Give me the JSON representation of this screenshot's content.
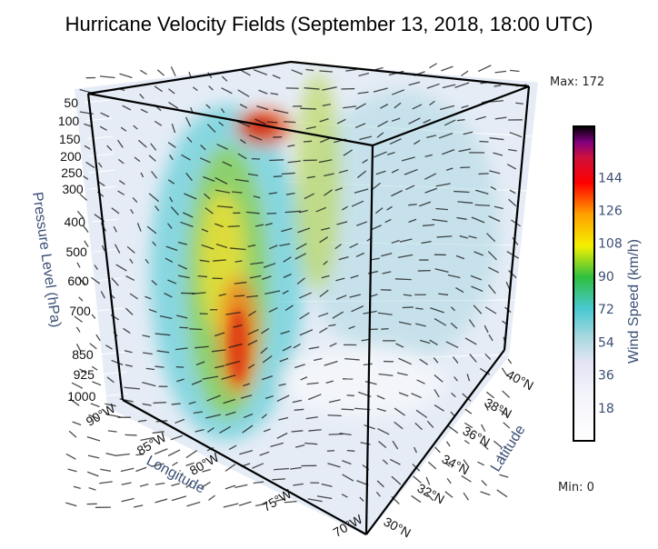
{
  "chart_data": {
    "type": "3d-cone",
    "title": "Hurricane Velocity Fields (September 13, 2018, 18:00 UTC)",
    "axes": {
      "x": {
        "title": "Longitude",
        "ticks": [
          "90°W",
          "85°W",
          "80°W",
          "75°W",
          "70°W"
        ],
        "range": [
          -90,
          -70
        ]
      },
      "y": {
        "title": "Latitude",
        "ticks": [
          "30°N",
          "32°N",
          "34°N",
          "36°N",
          "38°N",
          "40°N"
        ],
        "range": [
          30,
          40
        ]
      },
      "z": {
        "title": "Pressure Level (hPa)",
        "ticks": [
          "50",
          "100",
          "150",
          "200",
          "250",
          "300",
          "400",
          "500",
          "600",
          "700",
          "850",
          "925",
          "1000"
        ],
        "reversed": true
      }
    },
    "colorbar": {
      "title": "Wind Speed (km/h)",
      "ticks": [
        "144",
        "126",
        "108",
        "90",
        "72",
        "54",
        "36",
        "18"
      ],
      "range": [
        0,
        172
      ],
      "colorscale": [
        "#ffffff",
        "#e6e6f5",
        "#a8d8e0",
        "#48c8d0",
        "#2fbf40",
        "#f5f000",
        "#ffa000",
        "#ff0000",
        "#d0103a",
        "#800080",
        "#000000"
      ]
    },
    "annotations": {
      "max": "Max: 172",
      "min": "Min: 0"
    },
    "background": "#e5ecf6",
    "arrow_color": "#111111"
  }
}
